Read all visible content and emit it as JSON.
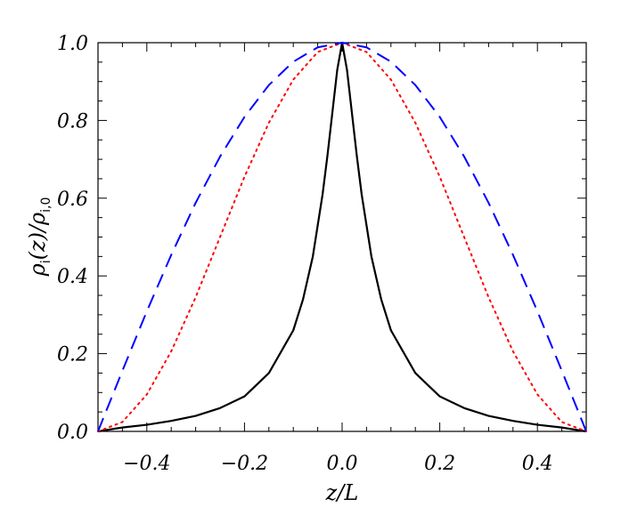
{
  "chart_data": {
    "type": "line",
    "title": "",
    "xlabel": "z/L",
    "ylabel": {
      "main": "ρ",
      "sub1": "i",
      "mid": "(z)/ρ",
      "sub2": "i,0"
    },
    "xlim": [
      -0.5,
      0.5
    ],
    "ylim": [
      0.0,
      1.0
    ],
    "grid": false,
    "x_ticks": [
      -0.4,
      -0.2,
      0.0,
      0.2,
      0.4
    ],
    "x_tick_labels": [
      "−0.4",
      "−0.2",
      "0.0",
      "0.2",
      "0.4"
    ],
    "y_ticks": [
      0.0,
      0.2,
      0.4,
      0.6,
      0.8,
      1.0
    ],
    "y_tick_labels": [
      "0.0",
      "0.2",
      "0.4",
      "0.6",
      "0.8",
      "1.0"
    ],
    "series": [
      {
        "color": "#000000",
        "style": "solid",
        "x": [
          -0.5,
          -0.45,
          -0.4,
          -0.35,
          -0.3,
          -0.25,
          -0.2,
          -0.15,
          -0.1,
          -0.08,
          -0.06,
          -0.04,
          -0.03,
          -0.02,
          -0.01,
          0.0,
          0.01,
          0.02,
          0.03,
          0.04,
          0.06,
          0.08,
          0.1,
          0.15,
          0.2,
          0.25,
          0.3,
          0.35,
          0.4,
          0.45,
          0.5
        ],
        "y": [
          0.0,
          0.01,
          0.017,
          0.027,
          0.04,
          0.06,
          0.09,
          0.15,
          0.26,
          0.34,
          0.45,
          0.61,
          0.71,
          0.82,
          0.93,
          1.0,
          0.93,
          0.82,
          0.71,
          0.61,
          0.45,
          0.34,
          0.26,
          0.15,
          0.09,
          0.06,
          0.04,
          0.027,
          0.017,
          0.01,
          0.0
        ]
      },
      {
        "color": "#ff0000",
        "style": "dotted",
        "x": [
          -0.5,
          -0.45,
          -0.4,
          -0.35,
          -0.3,
          -0.25,
          -0.2,
          -0.15,
          -0.1,
          -0.05,
          0.0,
          0.05,
          0.1,
          0.15,
          0.2,
          0.25,
          0.3,
          0.35,
          0.4,
          0.45,
          0.5
        ],
        "y": [
          0.0,
          0.024,
          0.095,
          0.206,
          0.345,
          0.5,
          0.655,
          0.794,
          0.905,
          0.976,
          1.0,
          0.976,
          0.905,
          0.794,
          0.655,
          0.5,
          0.345,
          0.206,
          0.095,
          0.024,
          0.0
        ]
      },
      {
        "color": "#0000ff",
        "style": "dashed",
        "x": [
          -0.5,
          -0.45,
          -0.4,
          -0.35,
          -0.3,
          -0.25,
          -0.2,
          -0.15,
          -0.1,
          -0.05,
          0.0,
          0.05,
          0.1,
          0.15,
          0.2,
          0.25,
          0.3,
          0.35,
          0.4,
          0.45,
          0.5
        ],
        "y": [
          0.0,
          0.156,
          0.309,
          0.454,
          0.588,
          0.707,
          0.809,
          0.891,
          0.951,
          0.988,
          1.0,
          0.988,
          0.951,
          0.891,
          0.809,
          0.707,
          0.588,
          0.454,
          0.309,
          0.156,
          0.0
        ]
      }
    ]
  }
}
